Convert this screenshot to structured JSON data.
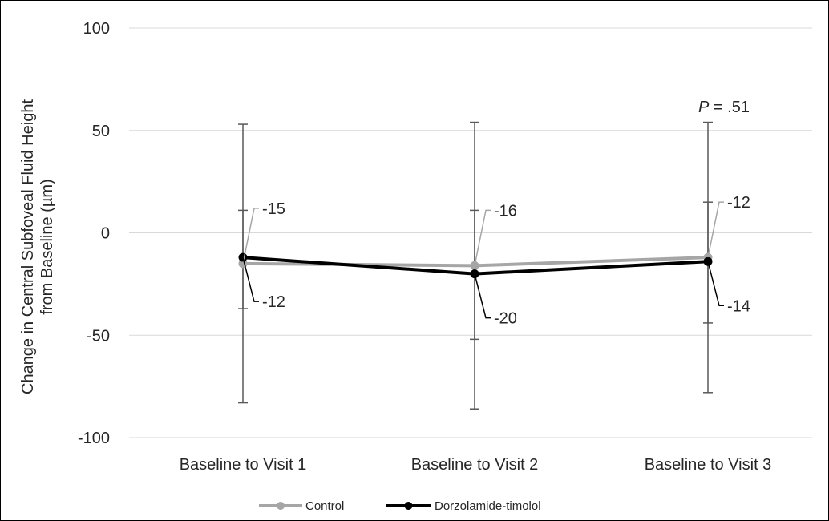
{
  "chart_data": {
    "type": "line",
    "categories": [
      "Baseline to Visit 1",
      "Baseline to Visit 2",
      "Baseline to Visit 3"
    ],
    "ylabel_line1": "Change in Central Subfoveal Fluid Height",
    "ylabel_line2": "from Baseline  (µm)",
    "ylim": [
      -100,
      100
    ],
    "yticks": [
      "100",
      "50",
      "0",
      "-50",
      "-100"
    ],
    "grid": true,
    "legend_placement": "bottom",
    "series": [
      {
        "name": "Control",
        "color": "#a6a6a6",
        "values": [
          -15,
          -16,
          -12
        ],
        "labels": [
          "-15",
          "-16",
          "-12"
        ],
        "error_upper": [
          11,
          11,
          15
        ],
        "error_lower": [
          -37,
          -52,
          -44
        ]
      },
      {
        "name": "Dorzolamide-timolol",
        "color": "#000000",
        "values": [
          -12,
          -20,
          -14
        ],
        "labels": [
          "-12",
          "-20",
          "-14"
        ],
        "error_upper": [
          53,
          54,
          54
        ],
        "error_lower": [
          -83,
          -86,
          -78
        ]
      }
    ],
    "annotation": {
      "p_italic": "P",
      "p_rest": " = .51"
    }
  }
}
